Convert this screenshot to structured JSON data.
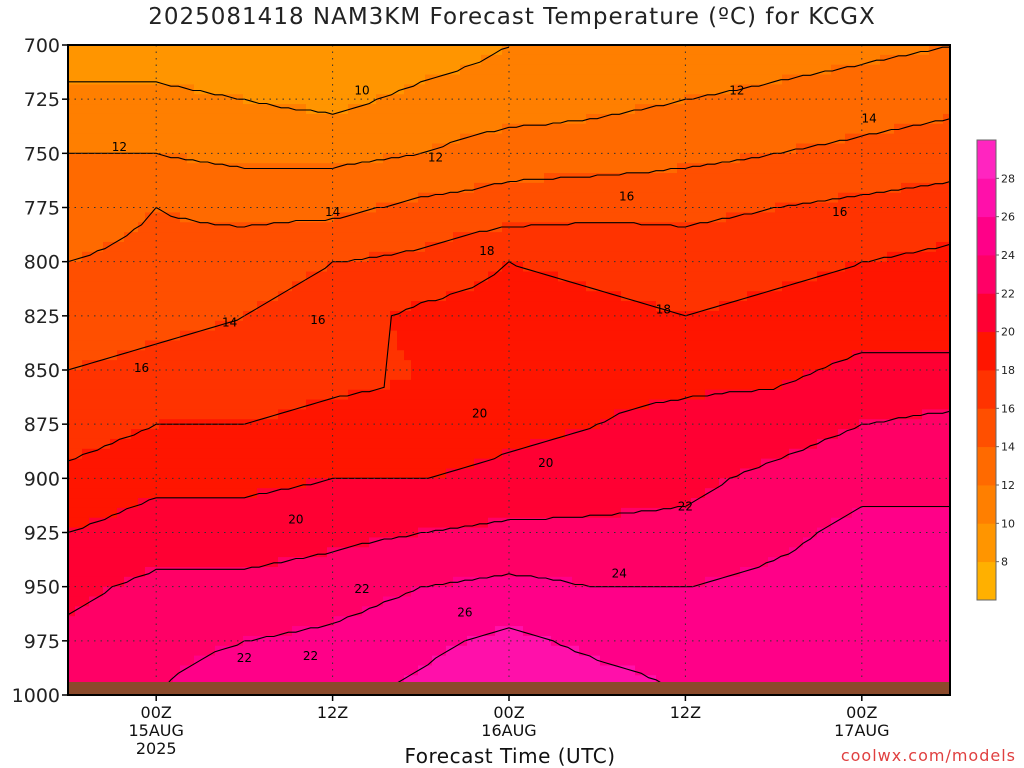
{
  "title": "2025081418 NAM3KM Forecast Temperature (ºC) for KCGX",
  "xlabel": "Forecast Time (UTC)",
  "credit": "coolwx.com/models",
  "colors": {
    "ground": "#8b4a2b",
    "contour": "#000000"
  },
  "chart_data": {
    "type": "heatmap",
    "title": "2025081418 NAM3KM Forecast Temperature (ºC) for KCGX",
    "xlabel": "Forecast Time (UTC)",
    "ylabel": "",
    "y_levels": [
      700,
      725,
      750,
      775,
      800,
      825,
      850,
      875,
      900,
      925,
      950,
      975,
      1000
    ],
    "x_ticks": [
      {
        "hour": 6,
        "lines": [
          "00Z",
          "15AUG",
          "2025"
        ]
      },
      {
        "hour": 18,
        "lines": [
          "12Z"
        ]
      },
      {
        "hour": 30,
        "lines": [
          "00Z",
          "16AUG"
        ]
      },
      {
        "hour": 42,
        "lines": [
          "12Z"
        ]
      },
      {
        "hour": 54,
        "lines": [
          "00Z",
          "17AUG"
        ]
      }
    ],
    "xlim": [
      0,
      60
    ],
    "ylim": [
      700,
      1000
    ],
    "grid": true,
    "legend": "right",
    "colorbar": {
      "ticks": [
        8,
        10,
        12,
        14,
        16,
        18,
        20,
        22,
        24,
        26,
        28
      ],
      "colors": [
        "#ffb000",
        "#ff9500",
        "#ff7f00",
        "#ff6a00",
        "#ff4f00",
        "#ff3300",
        "#ff1500",
        "#ff0033",
        "#ff0066",
        "#ff0088",
        "#ff10aa",
        "#ff25c0"
      ]
    },
    "profiles": [
      {
        "hour": 0,
        "temps": [
          9,
          10.5,
          12,
          13,
          14,
          15,
          16,
          17,
          18.5,
          20,
          21.5,
          22.5,
          23
        ]
      },
      {
        "hour": 6,
        "temps": [
          9,
          10.5,
          12,
          14,
          14.5,
          15.5,
          16.5,
          18,
          19.5,
          21,
          22.5,
          23.5,
          24
        ]
      },
      {
        "hour": 12,
        "temps": [
          8.5,
          10,
          11.5,
          13.5,
          15,
          16,
          17,
          18,
          19.5,
          21,
          22.5,
          24,
          25
        ]
      },
      {
        "hour": 18,
        "temps": [
          8,
          9.5,
          11.5,
          13.5,
          16,
          17,
          17.5,
          18.5,
          20,
          21.5,
          23,
          24.5,
          25.5
        ]
      },
      {
        "hour": 24,
        "temps": [
          9,
          10.5,
          12,
          14.5,
          16.5,
          18.5,
          18,
          18.5,
          20,
          22,
          24,
          25.5,
          26.5
        ]
      },
      {
        "hour": 30,
        "temps": [
          10,
          11,
          13,
          15,
          18,
          19,
          19.5,
          19.5,
          20.5,
          22.5,
          24.5,
          26.5,
          28
        ]
      },
      {
        "hour": 36,
        "temps": [
          10.5,
          11.5,
          13,
          15.5,
          17.5,
          18.5,
          19.5,
          20,
          21,
          22.5,
          24,
          25.5,
          27
        ]
      },
      {
        "hour": 42,
        "temps": [
          10.5,
          12,
          13.5,
          15.5,
          17,
          18,
          19.5,
          20.5,
          21.5,
          22.5,
          24,
          25,
          26
        ]
      },
      {
        "hour": 48,
        "temps": [
          11,
          12.5,
          14,
          16,
          17.5,
          18.5,
          19.5,
          21,
          22.5,
          23.5,
          24.5,
          25,
          26
        ]
      },
      {
        "hour": 54,
        "temps": [
          11.5,
          13,
          14.5,
          16.5,
          18,
          19,
          20.5,
          22,
          23.5,
          24.5,
          25,
          25.5,
          26
        ]
      },
      {
        "hour": 60,
        "temps": [
          12,
          13.5,
          15,
          17,
          18.5,
          19,
          20.5,
          22.5,
          23.5,
          24.5,
          25,
          25.5,
          26
        ]
      }
    ],
    "contour_labels": [
      {
        "value": "10",
        "hour": 20,
        "p": 721
      },
      {
        "value": "12",
        "hour": 3.5,
        "p": 747
      },
      {
        "value": "12",
        "hour": 25,
        "p": 752
      },
      {
        "value": "12",
        "hour": 45.5,
        "p": 721
      },
      {
        "value": "14",
        "hour": 54.5,
        "p": 734
      },
      {
        "value": "14",
        "hour": 18,
        "p": 777
      },
      {
        "value": "14",
        "hour": 11,
        "p": 828
      },
      {
        "value": "16",
        "hour": 38,
        "p": 770
      },
      {
        "value": "16",
        "hour": 52.5,
        "p": 777
      },
      {
        "value": "16",
        "hour": 17,
        "p": 827
      },
      {
        "value": "16",
        "hour": 5,
        "p": 849
      },
      {
        "value": "18",
        "hour": 28.5,
        "p": 795
      },
      {
        "value": "18",
        "hour": 40.5,
        "p": 822
      },
      {
        "value": "20",
        "hour": 28,
        "p": 870
      },
      {
        "value": "20",
        "hour": 32.5,
        "p": 893
      },
      {
        "value": "20",
        "hour": 15.5,
        "p": 919
      },
      {
        "value": "22",
        "hour": 42,
        "p": 913
      },
      {
        "value": "22",
        "hour": 20,
        "p": 951
      },
      {
        "value": "22",
        "hour": 12,
        "p": 983
      },
      {
        "value": "22",
        "hour": 16.5,
        "p": 982
      },
      {
        "value": "24",
        "hour": 37.5,
        "p": 944
      },
      {
        "value": "26",
        "hour": 27,
        "p": 962
      }
    ]
  }
}
